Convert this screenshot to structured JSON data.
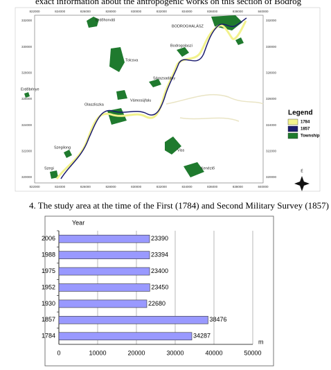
{
  "page": {
    "top_text": "exact information about the antropogenic works on this section of Bodrog",
    "caption": "4. The study area at the time of the First (1784) and Second Military Survey (1857)"
  },
  "map": {
    "xlabels": [
      "822000",
      "824000",
      "826000",
      "828000",
      "830000",
      "832000",
      "834000",
      "836000",
      "838000",
      "840000"
    ],
    "ylabels": [
      "332000",
      "330000",
      "328000",
      "326000",
      "324000",
      "322000",
      "320000"
    ],
    "places": [
      "Erdőhorváti",
      "BODROGHALÁSZ",
      "Bodrogolaszi",
      "Tolcsva",
      "Sárazsadány",
      "Erdőbénye",
      "Vámosújfalu",
      "Olaszliszka",
      "Szegilong",
      "Viss",
      "Kenézlő",
      "Szegi"
    ],
    "legend": {
      "title": "Legend",
      "items": [
        {
          "name": "1784",
          "color": "#f2f28c"
        },
        {
          "name": "1857",
          "color": "#1a1a6e"
        },
        {
          "name": "Township",
          "color": "#1f7a2e"
        }
      ]
    },
    "compass": "É"
  },
  "chart_data": {
    "type": "bar",
    "orientation": "horizontal",
    "y_label": "Year",
    "x_label": "m",
    "categories": [
      "2006",
      "1988",
      "1975",
      "1952",
      "1930",
      "1857",
      "1784"
    ],
    "values": [
      23390,
      23394,
      23400,
      23450,
      22680,
      38476,
      34287
    ],
    "color": "#9999ff",
    "xlim": [
      0,
      50000
    ],
    "xticks": [
      0,
      10000,
      20000,
      30000,
      40000,
      50000
    ],
    "grid": true
  }
}
